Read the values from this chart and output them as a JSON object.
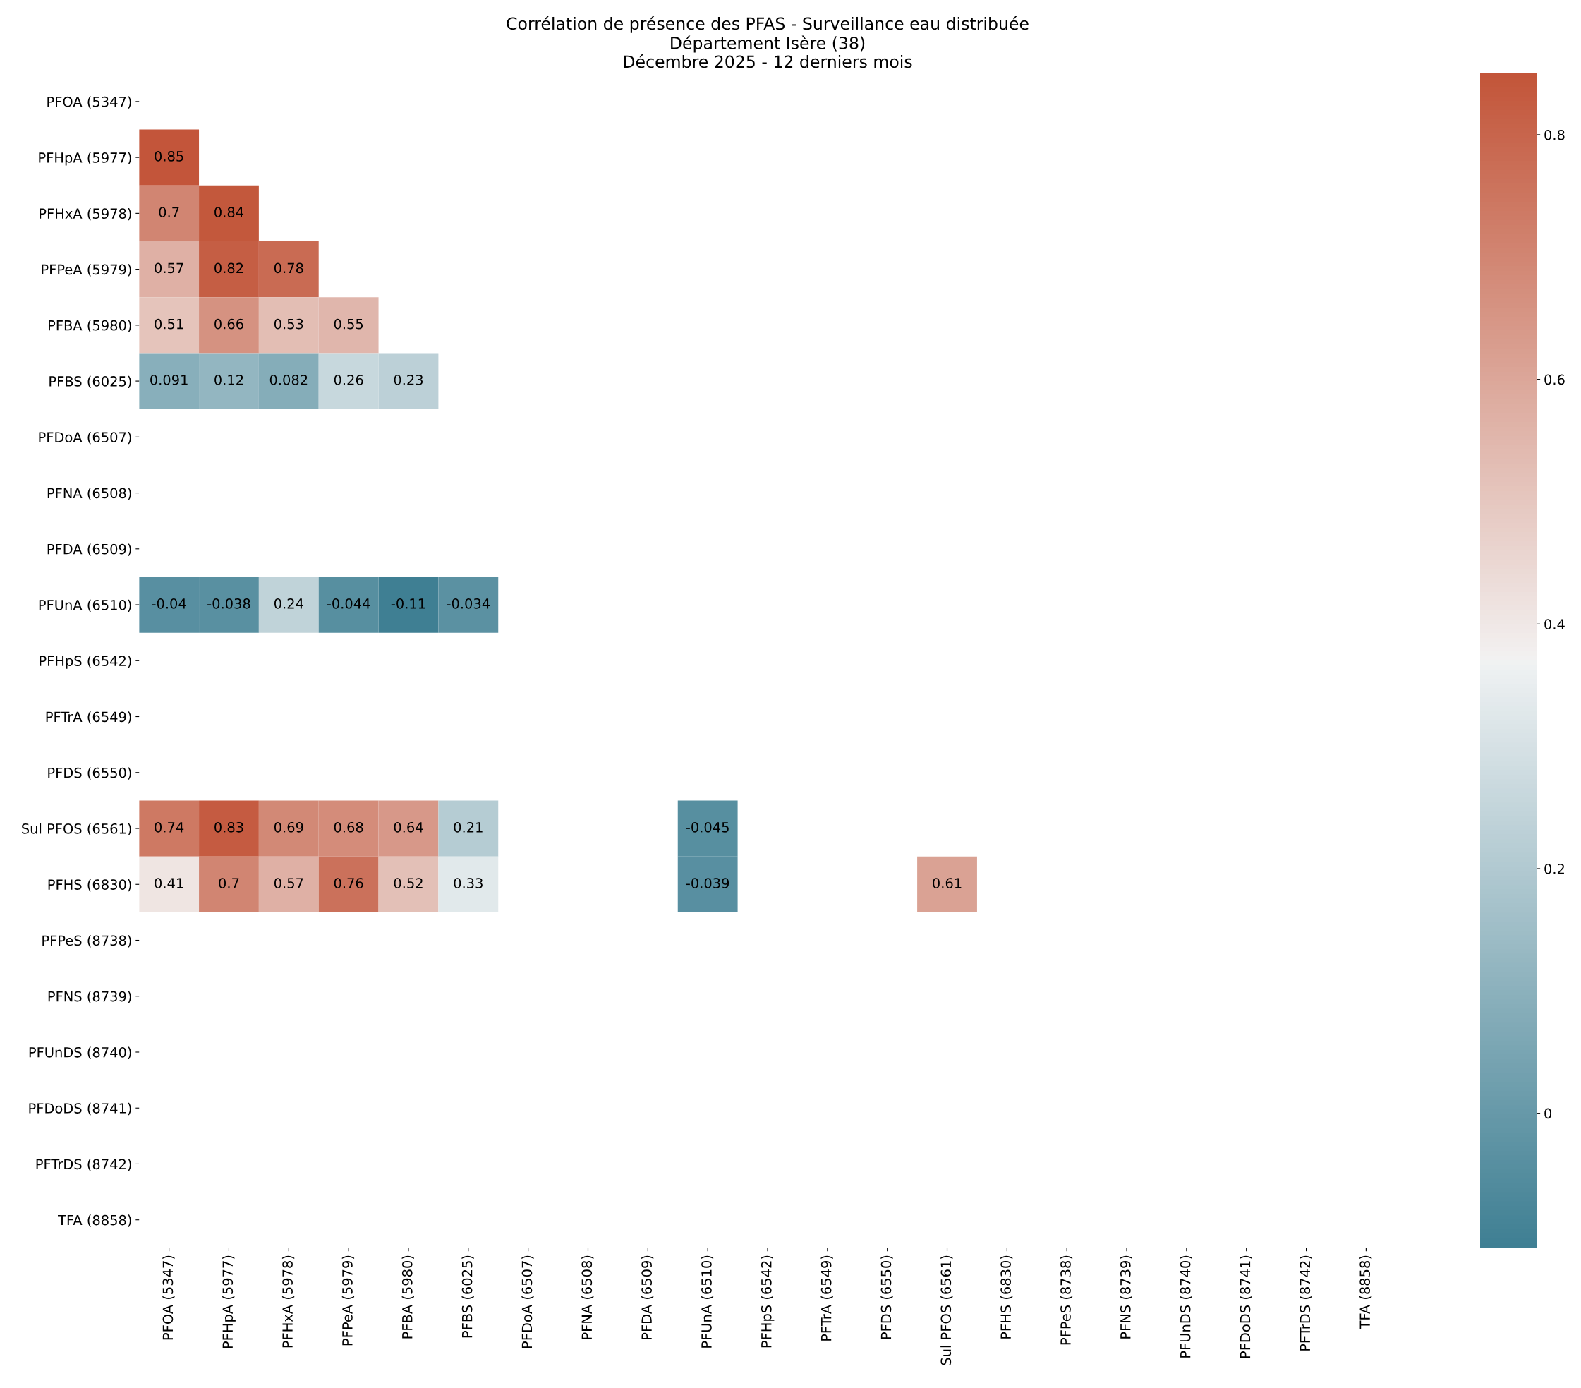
{
  "chart_data": {
    "type": "heatmap",
    "title": "Corrélation de présence des PFAS - Surveillance eau distribuée\nDépartement Isère (38)\nDécembre 2025 - 12 derniers mois",
    "categories": [
      "PFOA (5347)",
      "PFHpA (5977)",
      "PFHxA (5978)",
      "PFPeA (5979)",
      "PFBA (5980)",
      "PFBS (6025)",
      "PFDoA (6507)",
      "PFNA (6508)",
      "PFDA (6509)",
      "PFUnA (6510)",
      "PFHpS (6542)",
      "PFTrA (6549)",
      "PFDS (6550)",
      "Sul PFOS (6561)",
      "PFHS (6830)",
      "PFPeS (8738)",
      "PFNS (8739)",
      "PFUnDS (8740)",
      "PFDoDS (8741)",
      "PFTrDS (8742)",
      "TFA (8858)"
    ],
    "y_categories": [
      "PFOA (5347)",
      "PFHpA (5977)",
      "PFHxA (5978)",
      "PFPeA (5979)",
      "PFBA (5980)",
      "PFBS (6025)",
      "PFDoA (6507)",
      "PFNA (6508)",
      "PFDA (6509)",
      "PFUnA (6510)",
      "PFHpS (6542)",
      "PFTrA (6549)",
      "PFDS (6550)",
      "Sul PFOS (6561)",
      "PFHS (6830)",
      "PFPeS (8738)",
      "PFNS (8739)",
      "PFUnDS (8740)",
      "PFDoDS (8741)",
      "PFTrDS (8742)",
      "TFA (8858)"
    ],
    "cells": [
      [
        null,
        null,
        null,
        null,
        null,
        null,
        null,
        null,
        null,
        null,
        null,
        null,
        null,
        null,
        null,
        null,
        null,
        null,
        null,
        null,
        null
      ],
      [
        0.85,
        null,
        null,
        null,
        null,
        null,
        null,
        null,
        null,
        null,
        null,
        null,
        null,
        null,
        null,
        null,
        null,
        null,
        null,
        null,
        null
      ],
      [
        0.7,
        0.84,
        null,
        null,
        null,
        null,
        null,
        null,
        null,
        null,
        null,
        null,
        null,
        null,
        null,
        null,
        null,
        null,
        null,
        null,
        null
      ],
      [
        0.57,
        0.82,
        0.78,
        null,
        null,
        null,
        null,
        null,
        null,
        null,
        null,
        null,
        null,
        null,
        null,
        null,
        null,
        null,
        null,
        null,
        null
      ],
      [
        0.51,
        0.66,
        0.53,
        0.55,
        null,
        null,
        null,
        null,
        null,
        null,
        null,
        null,
        null,
        null,
        null,
        null,
        null,
        null,
        null,
        null,
        null
      ],
      [
        0.091,
        0.12,
        0.082,
        0.26,
        0.23,
        null,
        null,
        null,
        null,
        null,
        null,
        null,
        null,
        null,
        null,
        null,
        null,
        null,
        null,
        null,
        null
      ],
      [
        null,
        null,
        null,
        null,
        null,
        null,
        null,
        null,
        null,
        null,
        null,
        null,
        null,
        null,
        null,
        null,
        null,
        null,
        null,
        null,
        null
      ],
      [
        null,
        null,
        null,
        null,
        null,
        null,
        null,
        null,
        null,
        null,
        null,
        null,
        null,
        null,
        null,
        null,
        null,
        null,
        null,
        null,
        null
      ],
      [
        null,
        null,
        null,
        null,
        null,
        null,
        null,
        null,
        null,
        null,
        null,
        null,
        null,
        null,
        null,
        null,
        null,
        null,
        null,
        null,
        null
      ],
      [
        -0.04,
        -0.038,
        0.24,
        -0.044,
        -0.11,
        -0.034,
        null,
        null,
        null,
        null,
        null,
        null,
        null,
        null,
        null,
        null,
        null,
        null,
        null,
        null,
        null
      ],
      [
        null,
        null,
        null,
        null,
        null,
        null,
        null,
        null,
        null,
        null,
        null,
        null,
        null,
        null,
        null,
        null,
        null,
        null,
        null,
        null,
        null
      ],
      [
        null,
        null,
        null,
        null,
        null,
        null,
        null,
        null,
        null,
        null,
        null,
        null,
        null,
        null,
        null,
        null,
        null,
        null,
        null,
        null,
        null
      ],
      [
        null,
        null,
        null,
        null,
        null,
        null,
        null,
        null,
        null,
        null,
        null,
        null,
        null,
        null,
        null,
        null,
        null,
        null,
        null,
        null,
        null
      ],
      [
        0.74,
        0.83,
        0.69,
        0.68,
        0.64,
        0.21,
        null,
        null,
        null,
        -0.045,
        null,
        null,
        null,
        null,
        null,
        null,
        null,
        null,
        null,
        null,
        null
      ],
      [
        0.41,
        0.7,
        0.57,
        0.76,
        0.52,
        0.33,
        null,
        null,
        null,
        -0.039,
        null,
        null,
        null,
        0.61,
        null,
        null,
        null,
        null,
        null,
        null,
        null
      ],
      [
        null,
        null,
        null,
        null,
        null,
        null,
        null,
        null,
        null,
        null,
        null,
        null,
        null,
        null,
        null,
        null,
        null,
        null,
        null,
        null,
        null
      ],
      [
        null,
        null,
        null,
        null,
        null,
        null,
        null,
        null,
        null,
        null,
        null,
        null,
        null,
        null,
        null,
        null,
        null,
        null,
        null,
        null,
        null
      ],
      [
        null,
        null,
        null,
        null,
        null,
        null,
        null,
        null,
        null,
        null,
        null,
        null,
        null,
        null,
        null,
        null,
        null,
        null,
        null,
        null,
        null
      ],
      [
        null,
        null,
        null,
        null,
        null,
        null,
        null,
        null,
        null,
        null,
        null,
        null,
        null,
        null,
        null,
        null,
        null,
        null,
        null,
        null,
        null
      ],
      [
        null,
        null,
        null,
        null,
        null,
        null,
        null,
        null,
        null,
        null,
        null,
        null,
        null,
        null,
        null,
        null,
        null,
        null,
        null,
        null,
        null
      ],
      [
        null,
        null,
        null,
        null,
        null,
        null,
        null,
        null,
        null,
        null,
        null,
        null,
        null,
        null,
        null,
        null,
        null,
        null,
        null,
        null,
        null
      ]
    ],
    "clim": [
      -0.11,
      0.85
    ],
    "cticks": [
      0,
      0.2,
      0.4,
      0.6,
      0.8
    ],
    "data_labels": true,
    "grid": false
  }
}
